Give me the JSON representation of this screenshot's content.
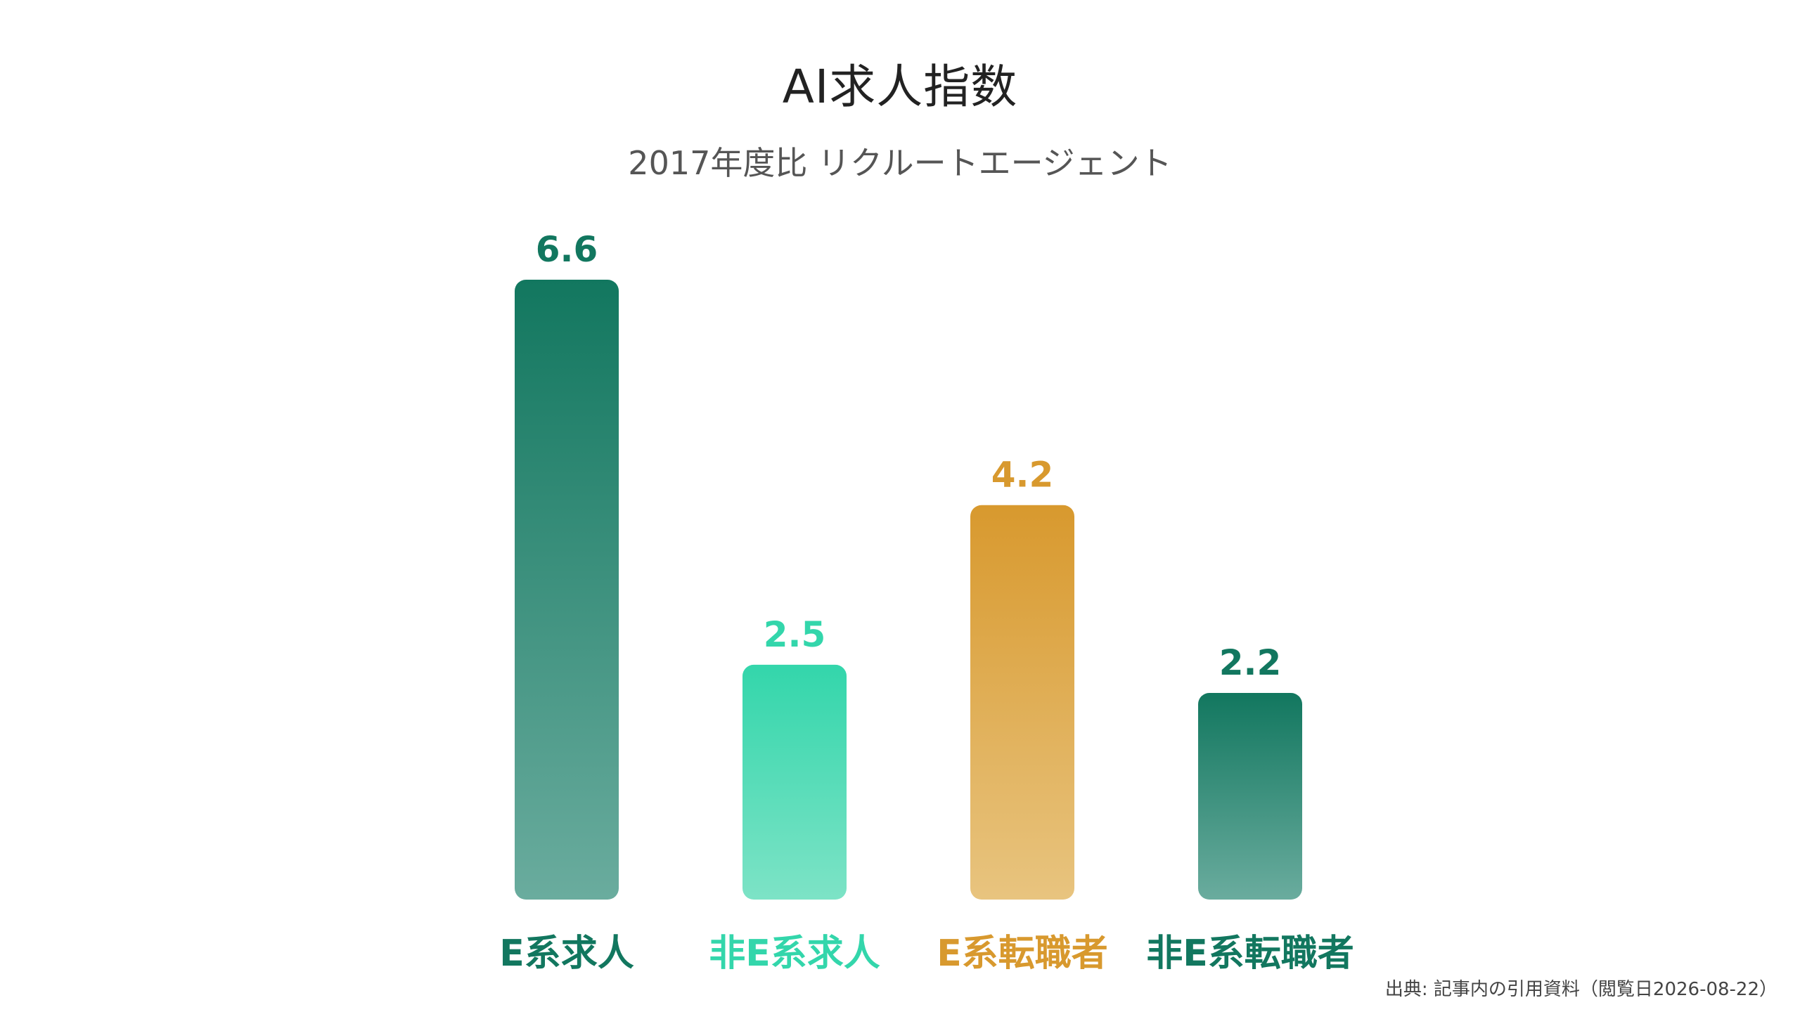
{
  "chart_data": {
    "type": "bar",
    "title": "AI求人指数",
    "subtitle": "2017年度比 リクルートエージェント",
    "categories": [
      "E系求人",
      "非E系求人",
      "E系転職者",
      "非E系転職者"
    ],
    "values": [
      6.6,
      2.5,
      4.2,
      2.2
    ],
    "value_labels": [
      "6.6",
      "2.5",
      "4.2",
      "2.2"
    ],
    "ylim": [
      0,
      6.6
    ],
    "grid": false,
    "legend": "none",
    "colors": [
      {
        "top": "#12775f",
        "bottom": "#6aac9e",
        "label": "#12775f"
      },
      {
        "top": "#33d6ab",
        "bottom": "#7de3c6",
        "label": "#33d6ab"
      },
      {
        "top": "#d8992e",
        "bottom": "#e8c47f",
        "label": "#d8992e"
      },
      {
        "top": "#12775f",
        "bottom": "#6aac9e",
        "label": "#12775f"
      }
    ]
  },
  "source": "出典: 記事内の引用資料（閲覧日2026-08-22）"
}
